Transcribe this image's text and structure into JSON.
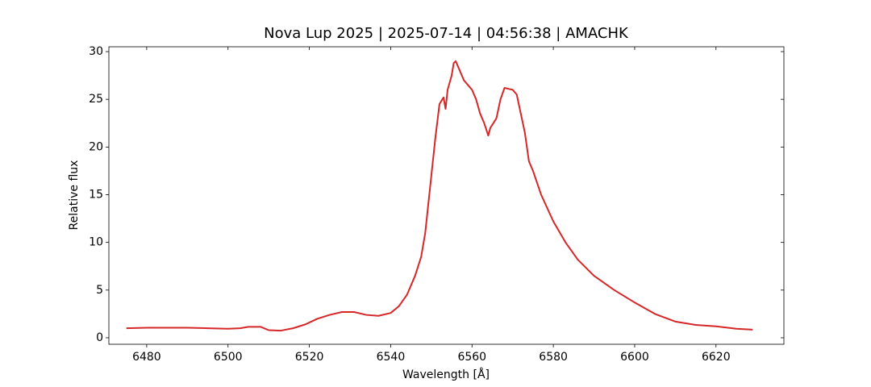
{
  "chart_data": {
    "type": "line",
    "title": "Nova Lup 2025 | 2025-07-14 | 04:56:38 | AMACHK",
    "x_label": "Wavelength [Å]",
    "y_label": "Relative flux",
    "color": "#d62728",
    "x": [
      6475,
      6480,
      6485,
      6490,
      6495,
      6500,
      6503,
      6505,
      6508,
      6510,
      6513,
      6516,
      6519,
      6522,
      6525,
      6528,
      6531,
      6534,
      6537,
      6540,
      6542,
      6544,
      6546,
      6547.5,
      6548.5,
      6549,
      6550,
      6551,
      6552,
      6553,
      6553.5,
      6554,
      6555,
      6555.5,
      6556,
      6557,
      6558,
      6559,
      6560,
      6561,
      6562,
      6563,
      6564,
      6564.5,
      6566,
      6567,
      6568,
      6569,
      6570,
      6571,
      6572,
      6573,
      6574,
      6575,
      6577,
      6580,
      6583,
      6586,
      6590,
      6595,
      6600,
      6605,
      6610,
      6615,
      6620,
      6625,
      6629
    ],
    "values": [
      1.0,
      1.05,
      1.05,
      1.05,
      1.0,
      0.95,
      1.0,
      1.15,
      1.15,
      0.8,
      0.75,
      1.0,
      1.4,
      2.0,
      2.4,
      2.7,
      2.7,
      2.4,
      2.3,
      2.6,
      3.3,
      4.5,
      6.5,
      8.5,
      11,
      13,
      17,
      21,
      24.5,
      25.2,
      24,
      26,
      27.5,
      28.8,
      29,
      28,
      27,
      26.5,
      26,
      25,
      23.5,
      22.5,
      21.2,
      22,
      23,
      25,
      26.2,
      26.1,
      26,
      25.5,
      23.5,
      21.5,
      18.5,
      17.5,
      15,
      12.2,
      10,
      8.2,
      6.5,
      5,
      3.7,
      2.5,
      1.7,
      1.35,
      1.2,
      0.95,
      0.85
    ],
    "xlim": [
      6470.7,
      6636.7
    ],
    "ylim": [
      -0.68,
      30.51
    ],
    "xticks": [
      6480,
      6500,
      6520,
      6540,
      6560,
      6580,
      6600,
      6620
    ],
    "yticks": [
      0,
      5,
      10,
      15,
      20,
      25,
      30
    ]
  }
}
